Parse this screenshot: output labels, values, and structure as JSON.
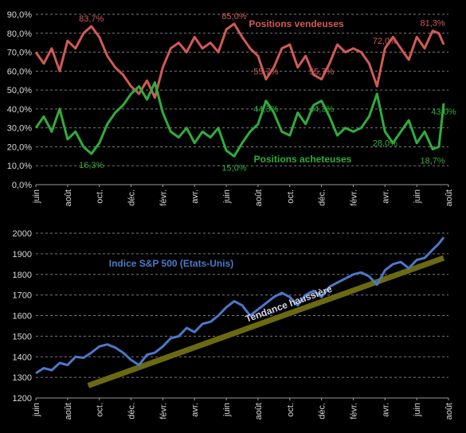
{
  "colors": {
    "background": "#000000",
    "grid": "#7a7a7a",
    "axis_text": "#d8d8d8",
    "sellers": "#d25a55",
    "buyers": "#2fae3a",
    "sp500": "#4a79c8",
    "trend": "#6b6a12",
    "trend_label": "#d7d3e8"
  },
  "chart_data": [
    {
      "type": "line",
      "title": "",
      "x_ticks": [
        "juin",
        "août",
        "oct.",
        "déc.",
        "févr.",
        "avr.",
        "juin",
        "août",
        "oct.",
        "déc.",
        "févr.",
        "avr.",
        "juin",
        "août"
      ],
      "x_range": [
        0,
        26
      ],
      "ylim": [
        0,
        90
      ],
      "y_ticks": [
        0,
        10,
        20,
        30,
        40,
        50,
        60,
        70,
        80,
        90
      ],
      "y_tick_labels": [
        "0,0%",
        "10,0%",
        "20,0%",
        "30,0%",
        "40,0%",
        "50,0%",
        "60,0%",
        "70,0%",
        "80,0%",
        "90,0%"
      ],
      "grid": true,
      "series": [
        {
          "name": "Positions vendeuses",
          "color": "#d25a55",
          "x": [
            0,
            0.5,
            1,
            1.5,
            2,
            2.5,
            3,
            3.5,
            4,
            4.5,
            5,
            5.5,
            6,
            6.5,
            7,
            7.5,
            8,
            8.5,
            9,
            9.5,
            10,
            10.5,
            11,
            11.5,
            12,
            12.5,
            13,
            13.5,
            14,
            14.5,
            15,
            15.5,
            16,
            16.5,
            17,
            17.5,
            18,
            18.5,
            19,
            19.5,
            20,
            20.5,
            21,
            21.5,
            22,
            22.5,
            23,
            23.5,
            24,
            24.5,
            25,
            25.4,
            25.7
          ],
          "values": [
            70,
            64,
            72,
            60,
            76,
            72,
            80,
            83.7,
            78,
            68,
            62,
            58,
            52,
            48,
            55,
            46,
            62,
            72,
            75,
            70,
            78,
            72,
            75,
            70,
            82,
            85,
            78,
            72,
            68,
            55.7,
            62,
            72,
            74,
            62,
            68,
            58,
            55.7,
            64,
            74,
            70,
            72,
            70,
            64,
            52,
            72.0,
            78,
            72,
            66,
            78,
            72,
            81.3,
            80,
            74
          ]
        },
        {
          "name": "Positions acheteuses",
          "color": "#2fae3a",
          "x": [
            0,
            0.5,
            1,
            1.5,
            2,
            2.5,
            3,
            3.5,
            4,
            4.5,
            5,
            5.5,
            6,
            6.5,
            7,
            7.5,
            8,
            8.5,
            9,
            9.5,
            10,
            10.5,
            11,
            11.5,
            12,
            12.5,
            13,
            13.5,
            14,
            14.5,
            15,
            15.5,
            16,
            16.5,
            17,
            17.5,
            18,
            18.5,
            19,
            19.5,
            20,
            20.5,
            21,
            21.5,
            22,
            22.5,
            23,
            23.5,
            24,
            24.5,
            25,
            25.4,
            25.7
          ],
          "values": [
            30,
            36,
            28,
            40,
            24,
            28,
            20,
            16.3,
            22,
            32,
            38,
            42,
            48,
            52,
            45,
            54,
            38,
            28,
            25,
            30,
            22,
            28,
            25,
            30,
            18,
            15.0,
            22,
            28,
            32,
            44.3,
            38,
            28,
            26,
            38,
            32,
            42,
            44.3,
            36,
            26,
            30,
            28,
            30,
            36,
            48,
            28.0,
            22,
            28,
            34,
            22,
            28,
            18.7,
            20,
            43.0
          ]
        }
      ],
      "annotations": [
        {
          "text": "83,7%",
          "series": "sellers",
          "x": 3.5,
          "y": 83.7
        },
        {
          "text": "85,0%",
          "series": "sellers",
          "x": 12.5,
          "y": 85.0
        },
        {
          "text": "55,7%",
          "series": "sellers",
          "x": 14.5,
          "y": 55.7
        },
        {
          "text": "55,7%",
          "series": "sellers",
          "x": 18,
          "y": 55.7
        },
        {
          "text": "72,0%",
          "series": "sellers",
          "x": 22,
          "y": 72.0
        },
        {
          "text": "81,3%",
          "series": "sellers",
          "x": 25,
          "y": 81.3
        },
        {
          "text": "16,3%",
          "series": "buyers",
          "x": 3.5,
          "y": 16.3
        },
        {
          "text": "15,0%",
          "series": "buyers",
          "x": 12.5,
          "y": 15.0
        },
        {
          "text": "44,3%",
          "series": "buyers",
          "x": 14.5,
          "y": 44.3
        },
        {
          "text": "44,3%",
          "series": "buyers",
          "x": 18,
          "y": 44.3
        },
        {
          "text": "28,0%",
          "series": "buyers",
          "x": 22,
          "y": 28.0
        },
        {
          "text": "18,7%",
          "series": "buyers",
          "x": 25,
          "y": 18.7
        },
        {
          "text": "43,0%",
          "series": "buyers",
          "x": 25.7,
          "y": 43.0
        }
      ],
      "legend_labels": [
        "Positions vendeuses",
        "Positions acheteuses"
      ]
    },
    {
      "type": "line",
      "title": "",
      "x_ticks": [
        "juin",
        "août",
        "oct.",
        "déc.",
        "févr.",
        "avr.",
        "juin",
        "août",
        "oct.",
        "déc.",
        "févr.",
        "avr.",
        "juin",
        "août"
      ],
      "x_range": [
        0,
        26
      ],
      "ylim": [
        1200,
        2000
      ],
      "y_ticks": [
        1200,
        1300,
        1400,
        1500,
        1600,
        1700,
        1800,
        1900,
        2000
      ],
      "y_tick_labels": [
        "1200",
        "1300",
        "1400",
        "1500",
        "1600",
        "1700",
        "1800",
        "1900",
        "2000"
      ],
      "grid": true,
      "series": [
        {
          "name": "Indice S&P 500 (Etats-Unis)",
          "color": "#4a79c8",
          "x": [
            0,
            0.5,
            1,
            1.5,
            2,
            2.5,
            3,
            3.5,
            4,
            4.5,
            5,
            5.5,
            6,
            6.5,
            7,
            7.5,
            8,
            8.5,
            9,
            9.5,
            10,
            10.5,
            11,
            11.5,
            12,
            12.5,
            13,
            13.5,
            14,
            14.5,
            15,
            15.5,
            16,
            16.5,
            17,
            17.5,
            18,
            18.5,
            19,
            19.5,
            20,
            20.5,
            21,
            21.5,
            22,
            22.5,
            23,
            23.5,
            24,
            24.5,
            25,
            25.4,
            25.7
          ],
          "values": [
            1320,
            1345,
            1335,
            1370,
            1360,
            1400,
            1395,
            1420,
            1450,
            1460,
            1445,
            1420,
            1385,
            1360,
            1410,
            1420,
            1450,
            1490,
            1500,
            1540,
            1520,
            1560,
            1570,
            1600,
            1640,
            1670,
            1650,
            1600,
            1630,
            1660,
            1690,
            1710,
            1690,
            1650,
            1700,
            1720,
            1690,
            1740,
            1760,
            1780,
            1800,
            1810,
            1790,
            1750,
            1820,
            1850,
            1860,
            1830,
            1870,
            1880,
            1920,
            1950,
            1980
          ]
        }
      ],
      "trend_line": {
        "name": "Tendance haussière",
        "x": [
          3.3,
          25.7
        ],
        "values": [
          1260,
          1880
        ],
        "color": "#6b6a12"
      }
    }
  ]
}
